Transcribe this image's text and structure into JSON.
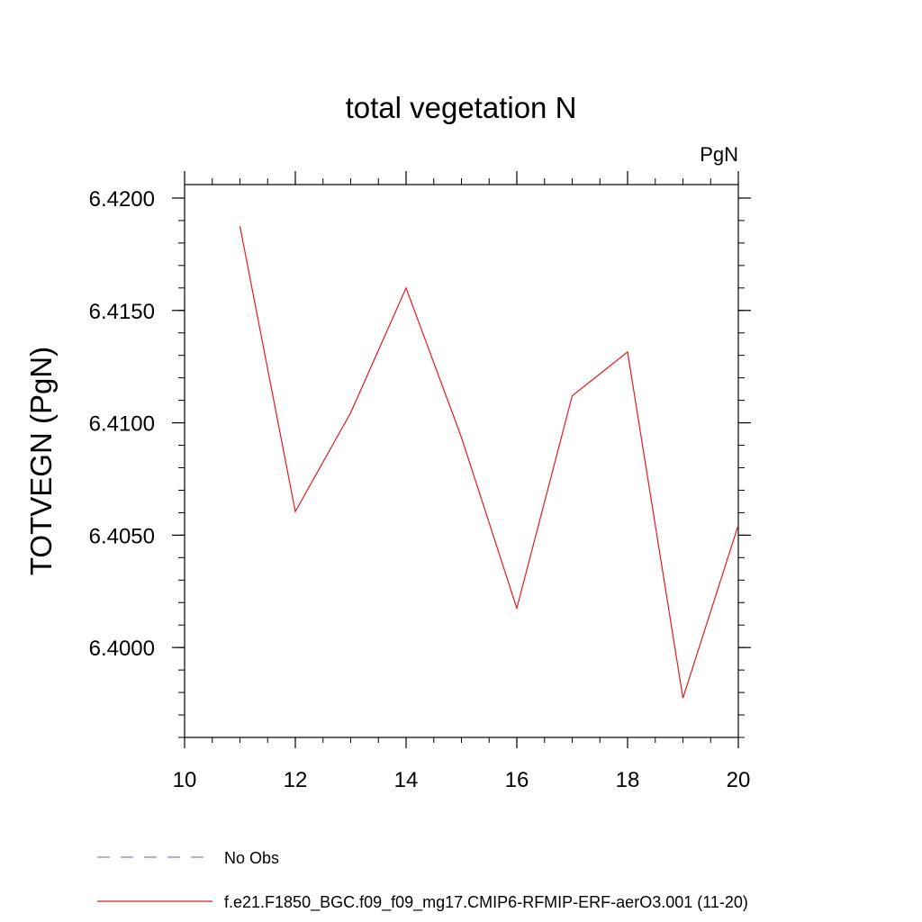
{
  "chart_data": {
    "type": "line",
    "title": "total vegetation N",
    "units_label": "PgN",
    "xlabel": "",
    "ylabel": "TOTVEGN  (PgN)",
    "xlim": [
      10,
      20
    ],
    "ylim": [
      6.396,
      6.4206
    ],
    "x_ticks": [
      "10",
      "12",
      "14",
      "16",
      "18",
      "20"
    ],
    "y_ticks": [
      "6.4000",
      "6.4050",
      "6.4100",
      "6.4150",
      "6.4200"
    ],
    "grid": false,
    "legend_placement": "bottom",
    "series": [
      {
        "name": "f.e21.F1850_BGC.f09_f09_mg17.CMIP6-RFMIP-ERF-aerO3.001 (11-20)",
        "color": "#e41a1c",
        "x": [
          11,
          12,
          13,
          14,
          15,
          16,
          17,
          18,
          19,
          20
        ],
        "y": [
          6.41875,
          6.40605,
          6.41045,
          6.416,
          6.40935,
          6.40175,
          6.4112,
          6.41315,
          6.39775,
          6.40545
        ]
      }
    ],
    "legend": [
      {
        "label": "No Obs",
        "style": "dashed",
        "color": "#8a80c0"
      },
      {
        "label": "f.e21.F1850_BGC.f09_f09_mg17.CMIP6-RFMIP-ERF-aerO3.001 (11-20)",
        "style": "solid",
        "color": "#e41a1c"
      }
    ]
  }
}
